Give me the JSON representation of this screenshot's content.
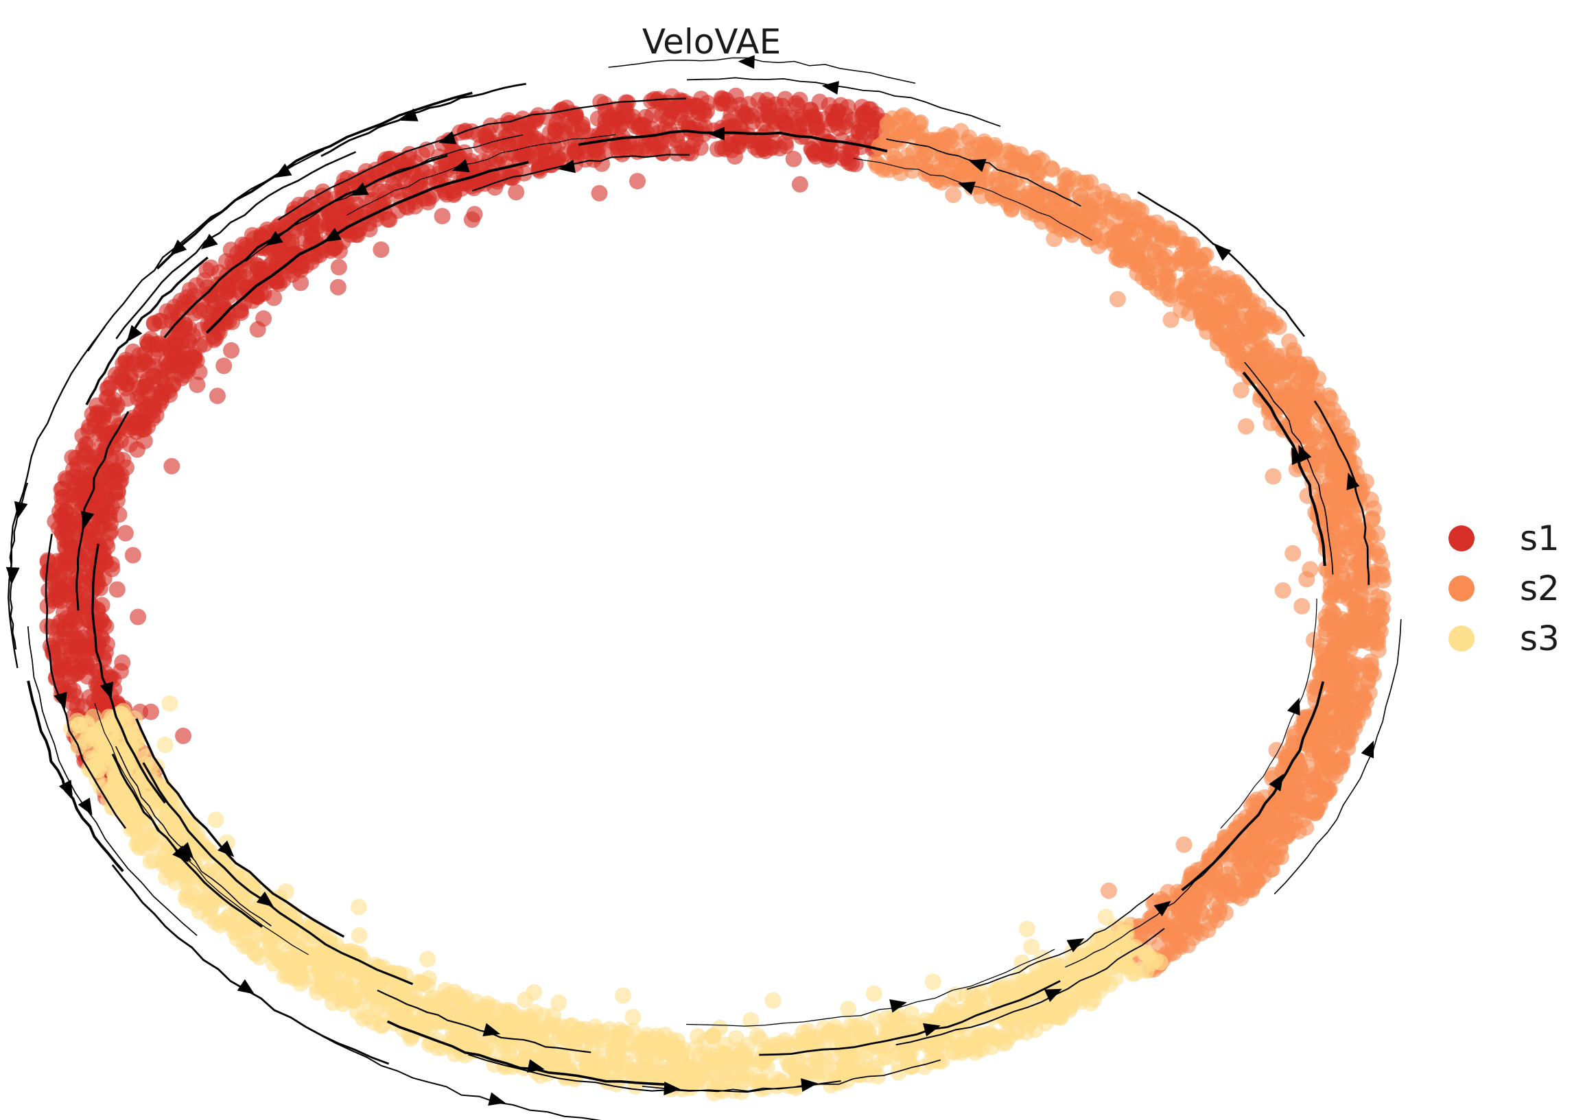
{
  "chart_data": {
    "type": "scatter",
    "title": "VeloVAE",
    "xlabel": "",
    "ylabel": "",
    "axes_visible": false,
    "grid": false,
    "legend_placement": "right",
    "overlay": "velocity stream lines with arrowheads",
    "series": [
      {
        "name": "s1",
        "color": "#d62f27",
        "arc_deg": [
          75,
          205
        ]
      },
      {
        "name": "s2",
        "color": "#f98c52",
        "arc_deg": [
          -50,
          75
        ]
      },
      {
        "name": "s3",
        "color": "#fde08d",
        "arc_deg": [
          195,
          312
        ]
      }
    ]
  }
}
